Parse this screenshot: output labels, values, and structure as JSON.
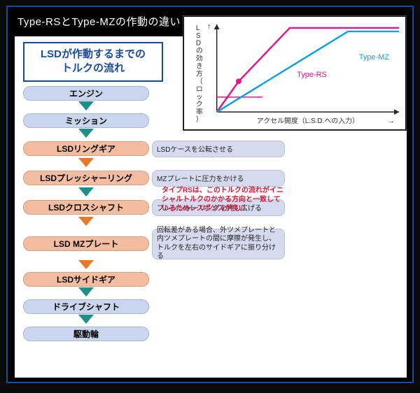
{
  "title": "Type-RSとType-MZの作動の違い",
  "flow": {
    "heading_line1": "LSDが作動するまでの",
    "heading_line2": "トルクの流れ",
    "heading_color": "#1a4a9c",
    "nodes": [
      {
        "label": "エンジン",
        "color": "blue"
      },
      {
        "label": "ミッション",
        "color": "blue"
      },
      {
        "label": "LSDリングギア",
        "color": "orange",
        "note": "LSDケースを公転させる"
      },
      {
        "label": "LSDプレッシャーリング",
        "color": "orange",
        "note": "MZプレートに圧力をかける"
      },
      {
        "label": "LSDクロスシャフト",
        "color": "orange",
        "note": "プレッシャーリングを押し広げる"
      },
      {
        "label": "LSD MZプレート",
        "color": "orange",
        "note": "回転差がある場合、外ツメプレートと内ツメプレートの間に摩擦が発生し、トルクを左右のサイドギアに振り分ける",
        "tall": true
      },
      {
        "label": "LSDサイドギア",
        "color": "orange"
      },
      {
        "label": "ドライブシャフト",
        "color": "blue"
      },
      {
        "label": "駆動輪",
        "color": "blue"
      }
    ],
    "arrows": [
      {
        "color": "teal"
      },
      {
        "color": "teal"
      },
      {
        "color": "orange"
      },
      {
        "color": "teal",
        "red_note": "タイプRSは、このトルクの流れがイニシャルトルクのかかる方向と一致しているためレスポンスが良い"
      },
      {
        "color": "orange"
      },
      {
        "color": "orange"
      },
      {
        "color": "teal"
      },
      {
        "color": "teal"
      }
    ],
    "red_note_color": "#d4183c",
    "colors": {
      "node_blue": "#c9d6ee",
      "node_orange": "#f4bda0",
      "arrow_teal": "#1f8f89",
      "arrow_orange": "#e67a2a",
      "side_note_bg": "#d6daef"
    }
  },
  "chart": {
    "type": "line",
    "x_axis_label": "アクセル開度（L.S.D.への入力）",
    "y_axis_label": "LSDの効き方（ロック率）",
    "label_fontsize": 10,
    "xlim": [
      0,
      100
    ],
    "ylim": [
      0,
      100
    ],
    "series": [
      {
        "name": "Type-RS",
        "label": "Type-RS",
        "color": "#e31587",
        "line_width": 2.5,
        "points": [
          [
            0,
            0
          ],
          [
            12,
            35
          ],
          [
            40,
            96
          ],
          [
            100,
            96
          ]
        ],
        "marker_at": [
          12,
          35
        ],
        "underline": {
          "from": [
            0,
            17
          ],
          "to": [
            25,
            17
          ],
          "color": "#e31587",
          "width": 1.5
        },
        "label_pos": [
          44,
          40
        ]
      },
      {
        "name": "Type-MZ",
        "label": "Type-MZ",
        "color": "#0ea0e0",
        "line_width": 2.5,
        "points": [
          [
            0,
            0
          ],
          [
            72,
            92
          ],
          [
            100,
            92
          ]
        ],
        "label_pos": [
          78,
          60
        ]
      }
    ],
    "axis_color": "#222",
    "axis_arrow": true,
    "background_color": "#ffffff"
  }
}
